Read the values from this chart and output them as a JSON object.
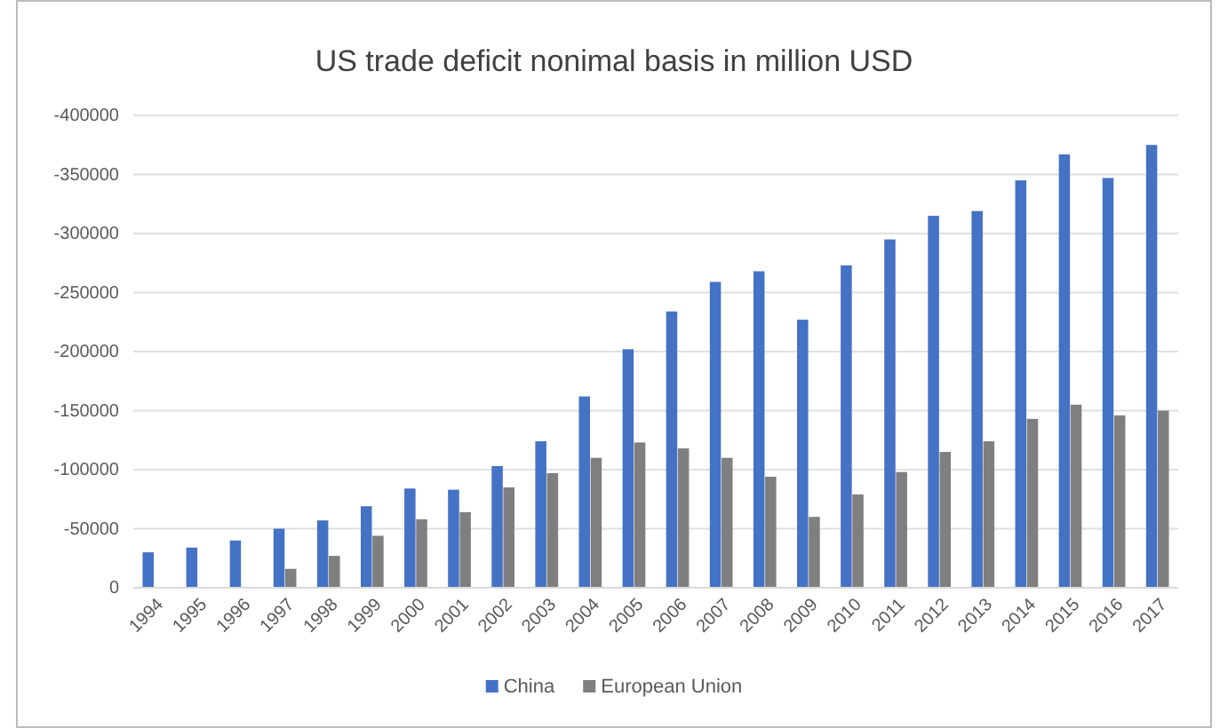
{
  "chart_data": {
    "type": "bar",
    "title": "US trade deficit nonimal basis in million USD",
    "categories": [
      "1994",
      "1995",
      "1996",
      "1997",
      "1998",
      "1999",
      "2000",
      "2001",
      "2002",
      "2003",
      "2004",
      "2005",
      "2006",
      "2007",
      "2008",
      "2009",
      "2010",
      "2011",
      "2012",
      "2013",
      "2014",
      "2015",
      "2016",
      "2017"
    ],
    "series": [
      {
        "name": "China",
        "color": "#4472c4",
        "values": [
          -30000,
          -34000,
          -40000,
          -50000,
          -57000,
          -69000,
          -84000,
          -83000,
          -103000,
          -124000,
          -162000,
          -202000,
          -234000,
          -259000,
          -268000,
          -227000,
          -273000,
          -295000,
          -315000,
          -319000,
          -345000,
          -367000,
          -347000,
          -375000
        ]
      },
      {
        "name": "European Union",
        "color": "#7f7f7f",
        "values": [
          null,
          null,
          null,
          -16000,
          -27000,
          -44000,
          -58000,
          -64000,
          -85000,
          -97000,
          -110000,
          -123000,
          -118000,
          -110000,
          -94000,
          -60000,
          -79000,
          -98000,
          -115000,
          -124000,
          -143000,
          -155000,
          -146000,
          -150000
        ]
      }
    ],
    "ylim": [
      0,
      -400000
    ],
    "yticks": [
      0,
      -50000,
      -100000,
      -150000,
      -200000,
      -250000,
      -300000,
      -350000,
      -400000
    ],
    "grid": "y",
    "legend": "bottom"
  }
}
